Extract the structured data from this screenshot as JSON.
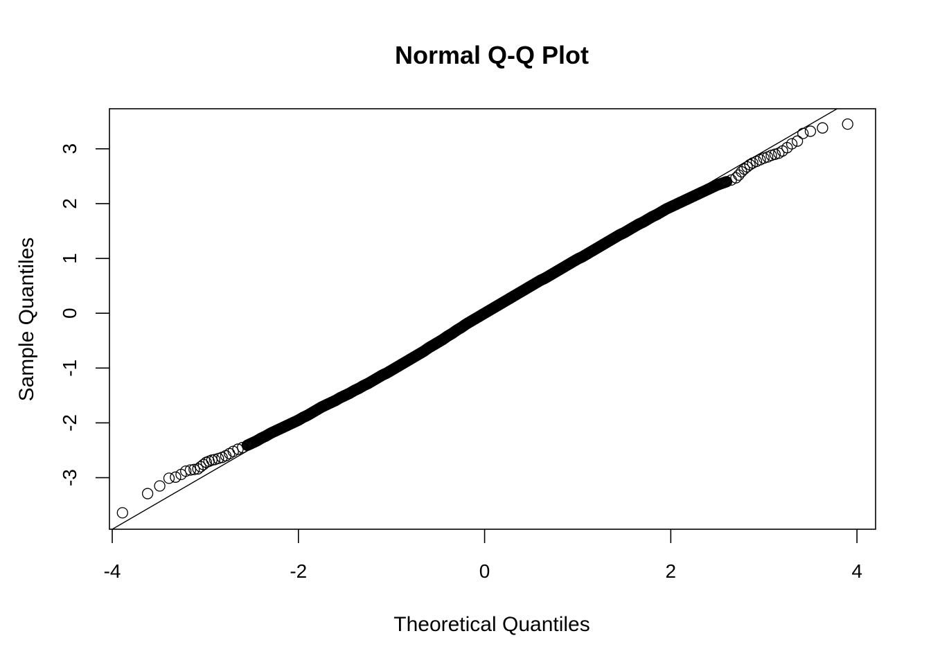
{
  "chart_data": {
    "type": "scatter",
    "title": "Normal Q-Q Plot",
    "xlabel": "Theoretical Quantiles",
    "ylabel": "Sample Quantiles",
    "xlim": [
      -4.03,
      4.2
    ],
    "ylim": [
      -3.94,
      3.73
    ],
    "x_ticks": [
      -4,
      -2,
      0,
      2,
      4
    ],
    "x_tick_labels": [
      "-4",
      "-2",
      "0",
      "2",
      "4"
    ],
    "y_ticks": [
      -3,
      -2,
      -1,
      0,
      1,
      2,
      3
    ],
    "y_tick_labels": [
      "-3",
      "-2",
      "-1",
      "0",
      "1",
      "2",
      "3"
    ],
    "grid": false,
    "legend": "none",
    "reference_line": {
      "intercept": 0.0,
      "slope": 0.985
    },
    "series": [
      {
        "points": [
          [
            -3.89,
            -3.64
          ],
          [
            -3.62,
            -3.29
          ],
          [
            -3.49,
            -3.15
          ],
          [
            -3.39,
            -3.01
          ],
          [
            -3.32,
            -2.99
          ],
          [
            -3.26,
            -2.94
          ],
          [
            -3.21,
            -2.88
          ],
          [
            -3.16,
            -2.86
          ],
          [
            -3.12,
            -2.85
          ],
          [
            -3.08,
            -2.84
          ],
          [
            -3.05,
            -2.8
          ],
          [
            -3.02,
            -2.76
          ],
          [
            -2.99,
            -2.72
          ],
          [
            -2.96,
            -2.7
          ],
          [
            -2.93,
            -2.68
          ],
          [
            -2.9,
            -2.67
          ],
          [
            -2.86,
            -2.65
          ],
          [
            -2.82,
            -2.63
          ],
          [
            -2.78,
            -2.6
          ],
          [
            -2.74,
            -2.56
          ],
          [
            -2.7,
            -2.52
          ],
          [
            -2.65,
            -2.48
          ],
          [
            -2.6,
            -2.45
          ],
          [
            -2.55,
            -2.41
          ],
          [
            -2.5,
            -2.37
          ],
          [
            -2.45,
            -2.33
          ],
          [
            -2.4,
            -2.28
          ],
          [
            -2.35,
            -2.24
          ],
          [
            -2.3,
            -2.19
          ],
          [
            -2.25,
            -2.15
          ],
          [
            -2.2,
            -2.11
          ],
          [
            -2.15,
            -2.07
          ],
          [
            -2.1,
            -2.03
          ],
          [
            -2.05,
            -1.99
          ],
          [
            -2.0,
            -1.95
          ],
          [
            -1.95,
            -1.9
          ],
          [
            -1.9,
            -1.86
          ],
          [
            -1.85,
            -1.81
          ],
          [
            -1.8,
            -1.76
          ],
          [
            -1.75,
            -1.71
          ],
          [
            -1.7,
            -1.67
          ],
          [
            -1.65,
            -1.63
          ],
          [
            -1.6,
            -1.59
          ],
          [
            -1.55,
            -1.54
          ],
          [
            -1.5,
            -1.5
          ],
          [
            -1.45,
            -1.46
          ],
          [
            -1.4,
            -1.41
          ],
          [
            -1.35,
            -1.37
          ],
          [
            -1.3,
            -1.32
          ],
          [
            -1.25,
            -1.28
          ],
          [
            -1.2,
            -1.23
          ],
          [
            -1.15,
            -1.18
          ],
          [
            -1.1,
            -1.13
          ],
          [
            -1.05,
            -1.09
          ],
          [
            -1.0,
            -1.04
          ],
          [
            -0.95,
            -0.99
          ],
          [
            -0.9,
            -0.94
          ],
          [
            -0.85,
            -0.89
          ],
          [
            -0.8,
            -0.84
          ],
          [
            -0.75,
            -0.79
          ],
          [
            -0.7,
            -0.74
          ],
          [
            -0.65,
            -0.69
          ],
          [
            -0.6,
            -0.63
          ],
          [
            -0.55,
            -0.58
          ],
          [
            -0.5,
            -0.53
          ],
          [
            -0.45,
            -0.48
          ],
          [
            -0.4,
            -0.42
          ],
          [
            -0.35,
            -0.37
          ],
          [
            -0.3,
            -0.31
          ],
          [
            -0.25,
            -0.26
          ],
          [
            -0.2,
            -0.2
          ],
          [
            -0.15,
            -0.15
          ],
          [
            -0.1,
            -0.1
          ],
          [
            -0.05,
            -0.05
          ],
          [
            0.0,
            0.0
          ],
          [
            0.05,
            0.05
          ],
          [
            0.1,
            0.1
          ],
          [
            0.15,
            0.15
          ],
          [
            0.2,
            0.2
          ],
          [
            0.25,
            0.25
          ],
          [
            0.3,
            0.3
          ],
          [
            0.35,
            0.35
          ],
          [
            0.4,
            0.4
          ],
          [
            0.45,
            0.45
          ],
          [
            0.5,
            0.5
          ],
          [
            0.55,
            0.55
          ],
          [
            0.6,
            0.6
          ],
          [
            0.65,
            0.64
          ],
          [
            0.7,
            0.69
          ],
          [
            0.75,
            0.74
          ],
          [
            0.8,
            0.79
          ],
          [
            0.85,
            0.84
          ],
          [
            0.9,
            0.89
          ],
          [
            0.95,
            0.94
          ],
          [
            1.0,
            0.99
          ],
          [
            1.05,
            1.03
          ],
          [
            1.1,
            1.08
          ],
          [
            1.15,
            1.13
          ],
          [
            1.2,
            1.18
          ],
          [
            1.25,
            1.23
          ],
          [
            1.3,
            1.28
          ],
          [
            1.35,
            1.33
          ],
          [
            1.4,
            1.38
          ],
          [
            1.45,
            1.43
          ],
          [
            1.5,
            1.47
          ],
          [
            1.55,
            1.52
          ],
          [
            1.6,
            1.57
          ],
          [
            1.65,
            1.62
          ],
          [
            1.7,
            1.66
          ],
          [
            1.75,
            1.71
          ],
          [
            1.8,
            1.76
          ],
          [
            1.85,
            1.8
          ],
          [
            1.9,
            1.85
          ],
          [
            1.95,
            1.9
          ],
          [
            2.0,
            1.94
          ],
          [
            2.05,
            1.98
          ],
          [
            2.1,
            2.02
          ],
          [
            2.15,
            2.06
          ],
          [
            2.2,
            2.1
          ],
          [
            2.25,
            2.14
          ],
          [
            2.3,
            2.18
          ],
          [
            2.35,
            2.22
          ],
          [
            2.4,
            2.26
          ],
          [
            2.45,
            2.3
          ],
          [
            2.5,
            2.34
          ],
          [
            2.55,
            2.37
          ],
          [
            2.6,
            2.4
          ],
          [
            2.65,
            2.43
          ],
          [
            2.7,
            2.47
          ],
          [
            2.73,
            2.52
          ],
          [
            2.76,
            2.58
          ],
          [
            2.79,
            2.63
          ],
          [
            2.82,
            2.67
          ],
          [
            2.85,
            2.71
          ],
          [
            2.88,
            2.74
          ],
          [
            2.92,
            2.77
          ],
          [
            2.96,
            2.8
          ],
          [
            3.0,
            2.83
          ],
          [
            3.04,
            2.85
          ],
          [
            3.08,
            2.88
          ],
          [
            3.12,
            2.9
          ],
          [
            3.16,
            2.92
          ],
          [
            3.2,
            2.96
          ],
          [
            3.25,
            3.02
          ],
          [
            3.3,
            3.09
          ],
          [
            3.36,
            3.14
          ],
          [
            3.42,
            3.28
          ],
          [
            3.5,
            3.32
          ],
          [
            3.63,
            3.38
          ],
          [
            3.9,
            3.45
          ]
        ]
      }
    ]
  }
}
